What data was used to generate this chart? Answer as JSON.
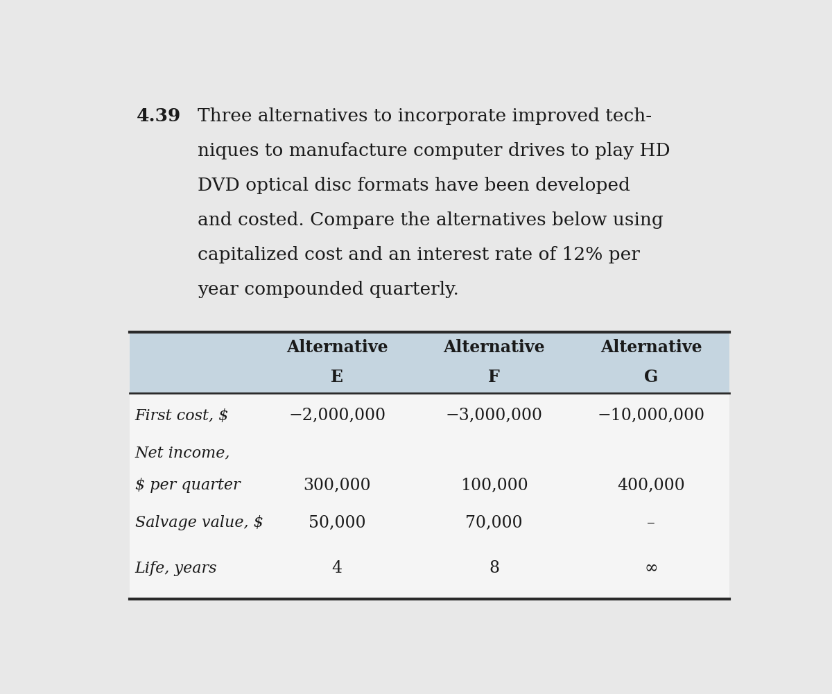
{
  "problem_number": "4.39",
  "description_lines": [
    "Three alternatives to incorporate improved tech-",
    "niques to manufacture computer drives to play HD",
    "DVD optical disc formats have been developed",
    "and costed. Compare the alternatives below using",
    "capitalized cost and an interest rate of 12% per",
    "year compounded quarterly."
  ],
  "header_row": [
    [
      "Alternative",
      "E"
    ],
    [
      "Alternative",
      "F"
    ],
    [
      "Alternative",
      "G"
    ]
  ],
  "rows": [
    {
      "label_lines": [
        "First cost, $"
      ],
      "values": [
        "−2,000,000",
        "−3,000,000",
        "−10,000,000"
      ]
    },
    {
      "label_lines": [
        "Net income,",
        "$ per quarter"
      ],
      "values": [
        "300,000",
        "100,000",
        "400,000"
      ]
    },
    {
      "label_lines": [
        "Salvage value, $"
      ],
      "values": [
        "50,000",
        "70,000",
        "–"
      ]
    },
    {
      "label_lines": [
        "Life, years"
      ],
      "values": [
        "4",
        "8",
        "∞"
      ]
    }
  ],
  "outer_bg": "#e0e0e0",
  "page_bg": "#e8e8e8",
  "header_bg": "#c5d5e0",
  "table_body_bg": "#f5f5f5",
  "text_color": "#1a1a1a",
  "border_color": "#2a2a2a",
  "font_size_desc": 19,
  "font_size_header": 17,
  "font_size_cell": 17,
  "font_size_label": 16,
  "font_size_problem": 19
}
